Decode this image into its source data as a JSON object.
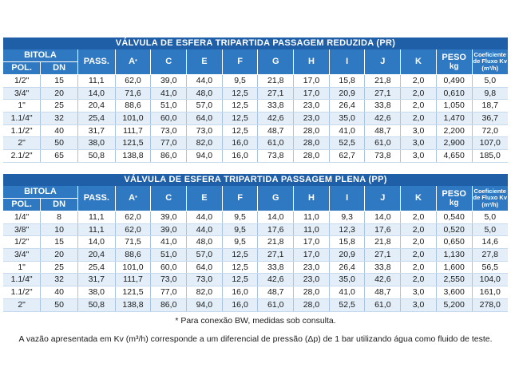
{
  "table1": {
    "title": "VÁLVULA DE ESFERA TRIPARTIDA PASSAGEM REDUZIDA  (PR)",
    "headers": {
      "bitola": "BITOLA",
      "pol": "POL.",
      "dn": "DN",
      "pass": "PASS.",
      "a": "A",
      "a_sup": "*",
      "c": "C",
      "e": "E",
      "f": "F",
      "g": "G",
      "h": "H",
      "i": "I",
      "j": "J",
      "k": "K",
      "peso": "PESO",
      "kg": "kg",
      "coef": "Coeficiente de Fluxo Kv (m³/h)"
    },
    "rows": [
      [
        "1/2\"",
        "15",
        "11,1",
        "62,0",
        "39,0",
        "44,0",
        "9,5",
        "21,8",
        "17,0",
        "15,8",
        "21,8",
        "2,0",
        "0,490",
        "5,0"
      ],
      [
        "3/4\"",
        "20",
        "14,0",
        "71,6",
        "41,0",
        "48,0",
        "12,5",
        "27,1",
        "17,0",
        "20,9",
        "27,1",
        "2,0",
        "0,610",
        "9,8"
      ],
      [
        "1\"",
        "25",
        "20,4",
        "88,6",
        "51,0",
        "57,0",
        "12,5",
        "33,8",
        "23,0",
        "26,4",
        "33,8",
        "2,0",
        "1,050",
        "18,7"
      ],
      [
        "1.1/4\"",
        "32",
        "25,4",
        "101,0",
        "60,0",
        "64,0",
        "12,5",
        "42,6",
        "23,0",
        "35,0",
        "42,6",
        "2,0",
        "1,470",
        "36,7"
      ],
      [
        "1.1/2\"",
        "40",
        "31,7",
        "111,7",
        "73,0",
        "73,0",
        "12,5",
        "48,7",
        "28,0",
        "41,0",
        "48,7",
        "3,0",
        "2,200",
        "72,0"
      ],
      [
        "2\"",
        "50",
        "38,0",
        "121,5",
        "77,0",
        "82,0",
        "16,0",
        "61,0",
        "28,0",
        "52,5",
        "61,0",
        "3,0",
        "2,900",
        "107,0"
      ],
      [
        "2.1/2\"",
        "65",
        "50,8",
        "138,8",
        "86,0",
        "94,0",
        "16,0",
        "73,8",
        "28,0",
        "62,7",
        "73,8",
        "3,0",
        "4,650",
        "185,0"
      ]
    ]
  },
  "table2": {
    "title": "VÁLVULA DE ESFERA TRIPARTIDA PASSAGEM PLENA  (PP)",
    "headers": {
      "bitola": "BITOLA",
      "pol": "POL.",
      "dn": "DN",
      "pass": "PASS.",
      "a": "A",
      "a_sup": "*",
      "c": "C",
      "e": "E",
      "f": "F",
      "g": "G",
      "h": "H",
      "i": "I",
      "j": "J",
      "k": "K",
      "peso": "PESO",
      "kg": "kg",
      "coef": "Coeficiente de Fluxo Kv (m³/h)"
    },
    "rows": [
      [
        "1/4\"",
        "8",
        "11,1",
        "62,0",
        "39,0",
        "44,0",
        "9,5",
        "14,0",
        "11,0",
        "9,3",
        "14,0",
        "2,0",
        "0,540",
        "5,0"
      ],
      [
        "3/8\"",
        "10",
        "11,1",
        "62,0",
        "39,0",
        "44,0",
        "9,5",
        "17,6",
        "11,0",
        "12,3",
        "17,6",
        "2,0",
        "0,520",
        "5,0"
      ],
      [
        "1/2\"",
        "15",
        "14,0",
        "71,5",
        "41,0",
        "48,0",
        "9,5",
        "21,8",
        "17,0",
        "15,8",
        "21,8",
        "2,0",
        "0,650",
        "14,6"
      ],
      [
        "3/4\"",
        "20",
        "20,4",
        "88,6",
        "51,0",
        "57,0",
        "12,5",
        "27,1",
        "17,0",
        "20,9",
        "27,1",
        "2,0",
        "1,130",
        "27,8"
      ],
      [
        "1\"",
        "25",
        "25,4",
        "101,0",
        "60,0",
        "64,0",
        "12,5",
        "33,8",
        "23,0",
        "26,4",
        "33,8",
        "2,0",
        "1,600",
        "56,5"
      ],
      [
        "1.1/4\"",
        "32",
        "31,7",
        "111,7",
        "73,0",
        "73,0",
        "12,5",
        "42,6",
        "23,0",
        "35,0",
        "42,6",
        "2,0",
        "2,550",
        "104,0"
      ],
      [
        "1.1/2\"",
        "40",
        "38,0",
        "121,5",
        "77,0",
        "82,0",
        "16,0",
        "48,7",
        "28,0",
        "41,0",
        "48,7",
        "3,0",
        "3,600",
        "161,0"
      ],
      [
        "2\"",
        "50",
        "50,8",
        "138,8",
        "86,0",
        "94,0",
        "16,0",
        "61,0",
        "28,0",
        "52,5",
        "61,0",
        "3,0",
        "5,200",
        "278,0"
      ]
    ]
  },
  "notes": {
    "bw": "* Para conexão BW, medidas sob consulta.",
    "kv": "A vazão apresentada em Kv (m³/h) corresponde a um diferencial de pressão (Δp) de 1 bar utilizando água como fluido de teste."
  }
}
